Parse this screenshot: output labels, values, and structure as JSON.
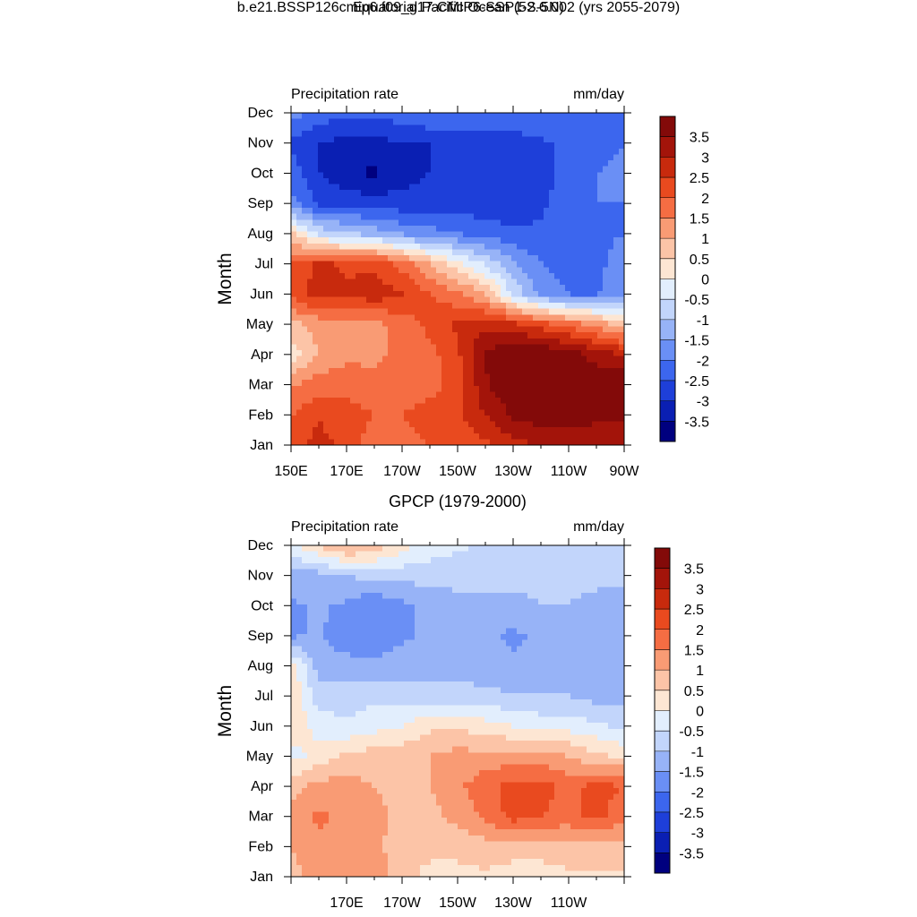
{
  "figure": {
    "title": "Equatorial Pacific Ocean (5S-5N)",
    "subtitle": "b.e21.BSSP126cmip6.f09_g17.CMIP6-SSP1-2.6.002 (yrs 2055-2079)"
  },
  "colorbar": {
    "levels": [
      -3.5,
      -3,
      -2.5,
      -2,
      -1.5,
      -1,
      -0.5,
      0,
      0.5,
      1,
      1.5,
      2,
      2.5,
      3,
      3.5
    ],
    "labels": [
      "-3.5",
      "-3",
      "-2.5",
      "-2",
      "-1.5",
      "-1",
      "-0.5",
      "0",
      "0.5",
      "1",
      "1.5",
      "2",
      "2.5",
      "3",
      "3.5"
    ],
    "colors": [
      "#00007f",
      "#0a1fb3",
      "#1e3fd9",
      "#3c66ee",
      "#6a8ff5",
      "#97b3f7",
      "#c2d5fb",
      "#e2eefd",
      "#fde6d3",
      "#fcc4a7",
      "#f99b74",
      "#f56d43",
      "#e94a1f",
      "#c82a0d",
      "#a3140a",
      "#830a09"
    ]
  },
  "chart_data": [
    {
      "type": "heatmap",
      "name": "model",
      "panel_title": "",
      "left_label": "Precipitation rate",
      "right_label": "mm/day",
      "ylabel": "Month",
      "xlabel": "",
      "y_ticks": [
        "Jan",
        "Feb",
        "Mar",
        "Apr",
        "May",
        "Jun",
        "Jul",
        "Aug",
        "Sep",
        "Oct",
        "Nov",
        "Dec"
      ],
      "x": [
        "150E",
        "160E",
        "170E",
        "180",
        "170W",
        "160W",
        "150W",
        "140W",
        "130W",
        "120W",
        "110W",
        "100W",
        "90W"
      ],
      "x_tick_labels": [
        "150E",
        "",
        "170E",
        "",
        "170W",
        "",
        "150W",
        "",
        "130W",
        "",
        "110W",
        "",
        "90W"
      ],
      "values": [
        [
          2.0,
          2.8,
          2.2,
          1.8,
          1.8,
          2.0,
          2.2,
          2.4,
          2.8,
          3.0,
          3.2,
          3.2,
          3.0
        ],
        [
          2.0,
          2.4,
          2.2,
          2.0,
          2.0,
          2.2,
          2.4,
          3.0,
          3.6,
          3.8,
          3.8,
          3.6,
          3.6
        ],
        [
          1.4,
          1.8,
          1.8,
          1.6,
          1.8,
          1.8,
          2.2,
          3.4,
          4.0,
          4.0,
          4.0,
          4.0,
          4.0
        ],
        [
          0.2,
          1.0,
          1.4,
          1.4,
          1.6,
          1.8,
          2.4,
          3.6,
          4.0,
          4.0,
          3.8,
          3.2,
          3.0
        ],
        [
          0.8,
          1.2,
          1.4,
          1.4,
          1.6,
          2.2,
          2.6,
          2.8,
          2.6,
          2.2,
          1.8,
          1.4,
          0.6
        ],
        [
          2.2,
          2.8,
          2.6,
          2.8,
          2.6,
          2.0,
          1.6,
          1.0,
          -0.6,
          -1.6,
          -2.0,
          -2.0,
          -1.8
        ],
        [
          2.0,
          2.6,
          2.4,
          2.4,
          1.8,
          1.0,
          0.2,
          -0.6,
          -1.4,
          -2.0,
          -2.2,
          -2.2,
          -1.6
        ],
        [
          0.6,
          -0.6,
          -1.0,
          -1.2,
          -1.6,
          -1.8,
          -2.0,
          -2.2,
          -2.4,
          -2.4,
          -2.4,
          -2.2,
          -2.0
        ],
        [
          -1.8,
          -2.6,
          -2.6,
          -2.8,
          -2.8,
          -2.8,
          -2.8,
          -2.8,
          -2.8,
          -2.6,
          -2.2,
          -2.0,
          -2.0
        ],
        [
          -2.2,
          -3.0,
          -3.4,
          -3.6,
          -3.2,
          -3.0,
          -3.0,
          -3.0,
          -3.0,
          -2.8,
          -2.2,
          -2.0,
          -1.8
        ],
        [
          -2.6,
          -3.0,
          -3.2,
          -3.2,
          -3.0,
          -3.0,
          -3.0,
          -3.0,
          -2.8,
          -2.6,
          -2.4,
          -2.2,
          -2.0
        ],
        [
          -1.8,
          -2.2,
          -2.4,
          -2.4,
          -2.2,
          -2.0,
          -2.0,
          -2.0,
          -2.0,
          -2.0,
          -2.0,
          -2.0,
          -2.0
        ]
      ]
    },
    {
      "type": "heatmap",
      "name": "gpcp",
      "panel_title": "GPCP (1979-2000)",
      "left_label": "Precipitation rate",
      "right_label": "mm/day",
      "ylabel": "Month",
      "xlabel": "",
      "y_ticks": [
        "Jan",
        "Feb",
        "Mar",
        "Apr",
        "May",
        "Jun",
        "Jul",
        "Aug",
        "Sep",
        "Oct",
        "Nov",
        "Dec"
      ],
      "x": [
        "150E",
        "160E",
        "170E",
        "180",
        "170W",
        "160W",
        "150W",
        "140W",
        "130W",
        "120W",
        "110W",
        "100W",
        "90W"
      ],
      "x_tick_labels": [
        "",
        "",
        "170E",
        "",
        "170W",
        "",
        "150W",
        "",
        "130W",
        "",
        "110W",
        "",
        ""
      ],
      "values": [
        [
          0.8,
          1.2,
          1.4,
          1.4,
          0.6,
          0.4,
          0.4,
          0.4,
          0.2,
          0.2,
          0.4,
          0.4,
          0.4
        ],
        [
          1.0,
          1.4,
          1.4,
          1.2,
          0.6,
          0.6,
          0.6,
          0.8,
          0.8,
          0.8,
          0.8,
          0.8,
          0.8
        ],
        [
          1.2,
          1.6,
          1.4,
          1.2,
          0.8,
          0.8,
          1.2,
          1.6,
          2.2,
          2.0,
          1.8,
          2.2,
          1.6
        ],
        [
          0.8,
          1.2,
          1.2,
          1.0,
          0.8,
          1.0,
          1.4,
          1.8,
          2.2,
          2.2,
          1.8,
          2.2,
          2.0
        ],
        [
          -0.2,
          0.2,
          0.6,
          0.8,
          0.8,
          1.0,
          1.2,
          1.2,
          1.2,
          1.2,
          1.0,
          0.6,
          0.4
        ],
        [
          0.4,
          -0.2,
          -0.4,
          -0.2,
          0.0,
          0.4,
          0.4,
          0.2,
          0.0,
          -0.2,
          -0.2,
          -0.4,
          -0.6
        ],
        [
          0.6,
          -0.8,
          -0.8,
          -0.6,
          -0.8,
          -0.8,
          -0.8,
          -0.8,
          -1.0,
          -1.0,
          -1.0,
          -1.2,
          -1.2
        ],
        [
          0.2,
          -1.2,
          -1.2,
          -1.4,
          -1.2,
          -1.2,
          -1.2,
          -1.4,
          -1.4,
          -1.4,
          -1.4,
          -1.4,
          -1.4
        ],
        [
          -1.6,
          -1.4,
          -2.0,
          -1.8,
          -1.6,
          -1.4,
          -1.2,
          -1.4,
          -1.6,
          -1.4,
          -1.2,
          -1.2,
          -1.4
        ],
        [
          -1.6,
          -1.4,
          -1.6,
          -2.0,
          -1.6,
          -1.4,
          -1.2,
          -1.2,
          -1.2,
          -1.0,
          -1.0,
          -1.2,
          -1.4
        ],
        [
          -1.2,
          -1.2,
          -1.0,
          -0.8,
          -0.8,
          -0.8,
          -0.8,
          -0.8,
          -0.8,
          -0.8,
          -0.8,
          -0.8,
          -0.8
        ],
        [
          -0.2,
          0.6,
          1.2,
          0.8,
          0.2,
          -0.2,
          -0.4,
          -0.6,
          -0.6,
          -0.6,
          -0.6,
          -0.6,
          -0.6
        ]
      ]
    }
  ]
}
